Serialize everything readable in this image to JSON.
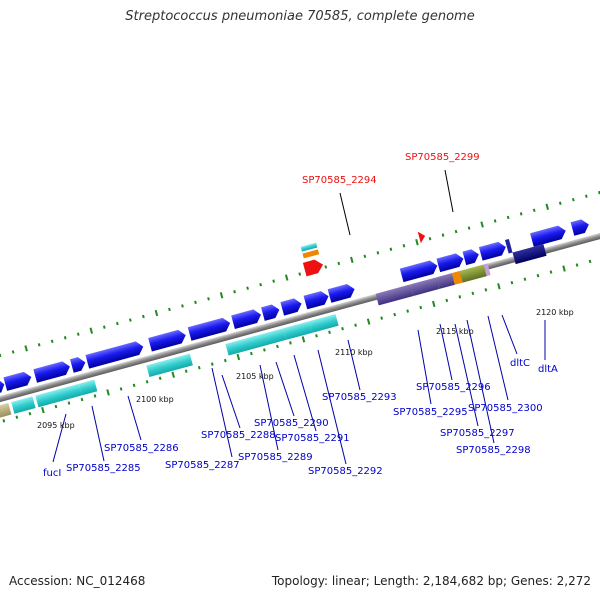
{
  "title": "Streptococcus pneumoniae 70585, complete genome",
  "footer": {
    "accession": "Accession: NC_012468",
    "topology": "Topology: linear; Length: 2,184,682 bp; Genes: 2,272"
  },
  "scale_labels": [
    "2095 kbp",
    "2100 kbp",
    "2105 kbp",
    "2110 kbp",
    "2115 kbp",
    "2120 kbp"
  ],
  "highlighted_genes": [
    "SP70585_2294",
    "SP70585_2299"
  ],
  "gene_labels": [
    "fucI",
    "SP70585_2285",
    "SP70585_2286",
    "SP70585_2287",
    "SP70585_2288",
    "SP70585_2289",
    "SP70585_2290",
    "SP70585_2291",
    "SP70585_2292",
    "SP70585_2293",
    "SP70585_2295",
    "SP70585_2296",
    "SP70585_2297",
    "SP70585_2298",
    "SP70585_2300",
    "dltC",
    "dltA"
  ],
  "colors": {
    "backbone": "#909090",
    "forward_gene": "#1a1aee",
    "feature_cyan": "#33cccc",
    "highlight_red": "#ee1111",
    "gene_label_blue": "#0000cc",
    "tick_green": "#228822"
  }
}
